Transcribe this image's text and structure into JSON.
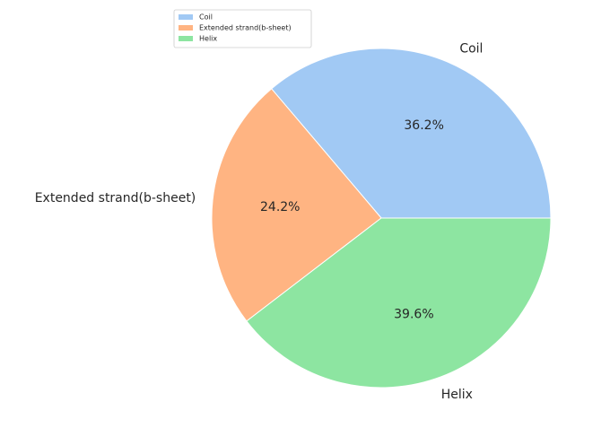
{
  "chart_data": {
    "type": "pie",
    "categories": [
      "Coil",
      "Extended strand(b-sheet)",
      "Helix"
    ],
    "values": [
      36.2,
      24.2,
      39.6
    ],
    "value_labels": [
      "36.2%",
      "24.2%",
      "39.6%"
    ],
    "colors": [
      "#a1c9f4",
      "#ffb482",
      "#8de5a1"
    ],
    "legend": {
      "placement": "top-left",
      "entries": [
        "Coil",
        "Extended strand(b-sheet)",
        "Helix"
      ]
    },
    "title": "",
    "start_angle_deg": 0,
    "direction": "counterclockwise"
  }
}
